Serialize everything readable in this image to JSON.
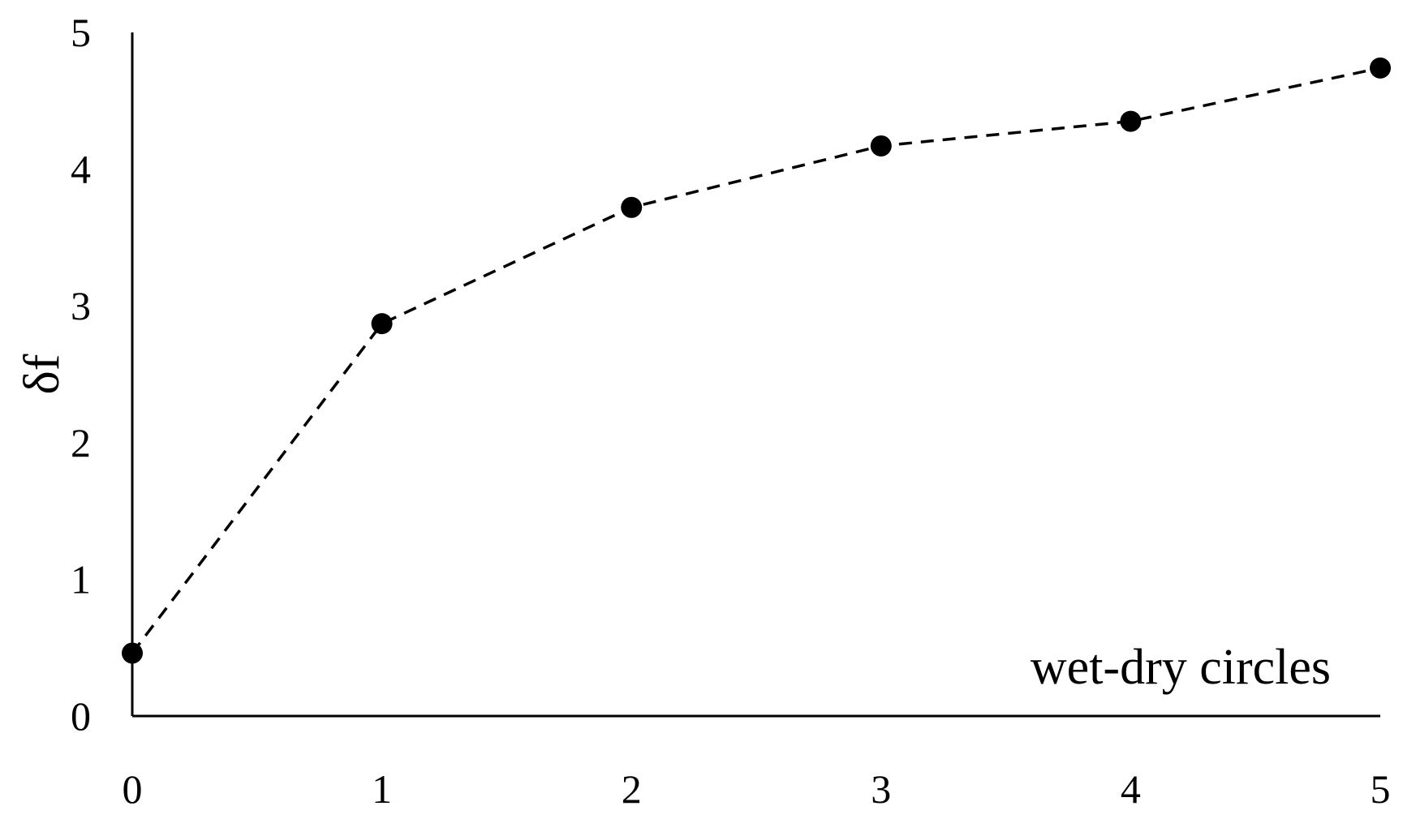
{
  "chart_data": {
    "type": "line",
    "title": "",
    "xlabel": "wet-dry circles",
    "ylabel": "δf",
    "x": [
      0,
      1,
      2,
      3,
      4,
      5
    ],
    "x_ticks": [
      "0",
      "1",
      "2",
      "3",
      "4",
      "5"
    ],
    "y_ticks": [
      "0",
      "1",
      "2",
      "3",
      "4",
      "5"
    ],
    "xlim": [
      0,
      5
    ],
    "ylim": [
      0,
      5
    ],
    "grid": false,
    "legend": "none",
    "series": [
      {
        "values": [
          0.46,
          2.87,
          3.72,
          4.17,
          4.35,
          4.74
        ],
        "line_style": "dashed",
        "marker": "filled-circle",
        "color": "#000000"
      }
    ]
  }
}
